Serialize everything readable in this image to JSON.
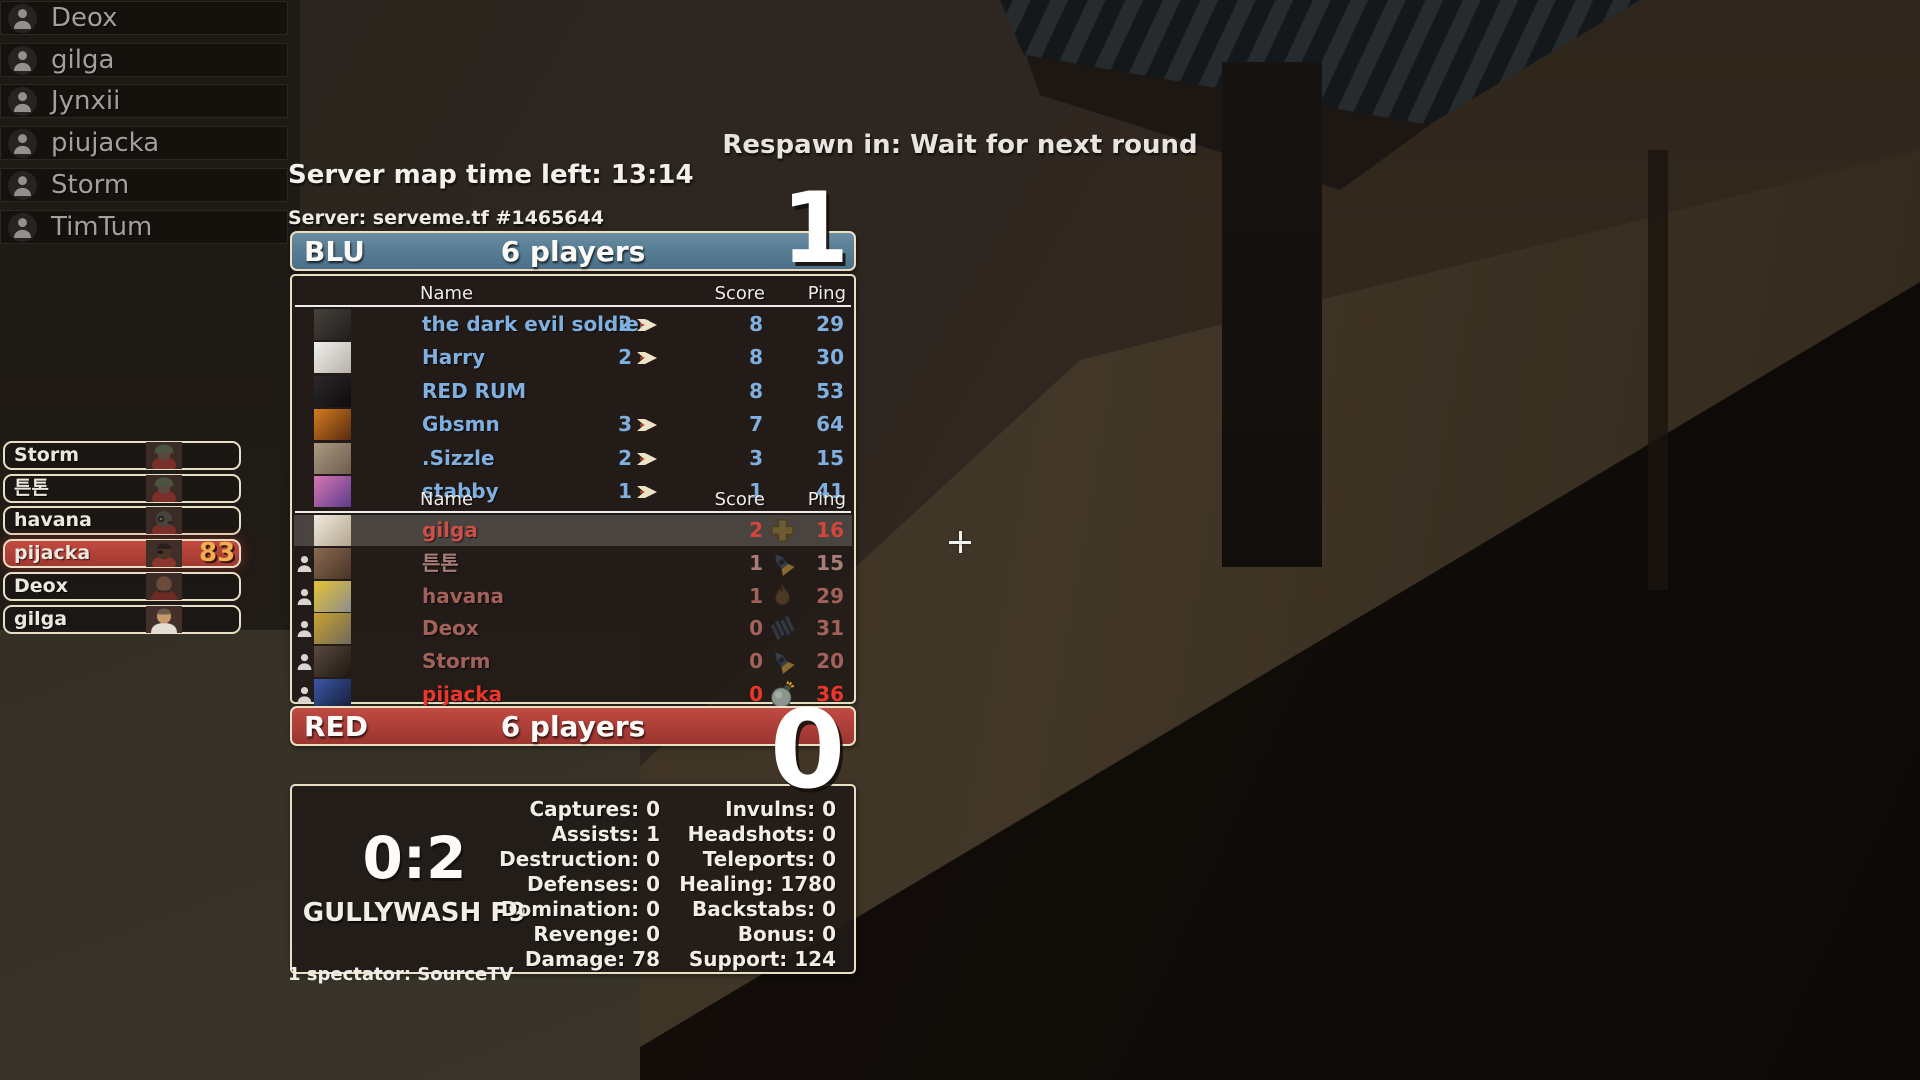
{
  "hud": {
    "respawn_text": "Respawn in: Wait for next round",
    "map_time_label": "Server map time left: 13:14",
    "server_label": "Server: serveme.tf #1465644",
    "spectator_label": "1 spectator: SourceTV"
  },
  "colors": {
    "blu_team": "#587e95",
    "red_team": "#b0403a",
    "panel_border": "#e9dfc6",
    "blu_text": "#7fb0df",
    "red_text_muted": "#a2625b",
    "red_text_bright": "#ec352b",
    "health_text": "#f2ae4e"
  },
  "roster": {
    "items": [
      {
        "name": "Deox"
      },
      {
        "name": "gilga"
      },
      {
        "name": "Jynxii"
      },
      {
        "name": "piujacka"
      },
      {
        "name": "Storm"
      },
      {
        "name": "TimTum"
      }
    ]
  },
  "target_ids": {
    "items": [
      {
        "name": "Storm",
        "class_icon": "portrait-soldier-icon",
        "highlight": false,
        "health": ""
      },
      {
        "name": "튼톤",
        "class_icon": "portrait-soldier-icon",
        "highlight": false,
        "health": ""
      },
      {
        "name": "havana",
        "class_icon": "portrait-pyro-icon",
        "highlight": false,
        "health": ""
      },
      {
        "name": "pijacka",
        "class_icon": "portrait-demoman-icon",
        "highlight": true,
        "health": "83"
      },
      {
        "name": "Deox",
        "class_icon": "portrait-heavy-icon",
        "highlight": false,
        "health": ""
      },
      {
        "name": "gilga",
        "class_icon": "portrait-medic-icon",
        "highlight": false,
        "health": ""
      }
    ]
  },
  "scoreboard": {
    "columns": {
      "name": "Name",
      "score": "Score",
      "ping": "Ping"
    },
    "blu": {
      "label": "BLU",
      "players_label": "6 players",
      "round_score": "1",
      "players": [
        {
          "name": "the dark evil soldier",
          "streak": "2",
          "score": "8",
          "ping": "29",
          "avatar": [
            "#46423c",
            "#201e1c"
          ]
        },
        {
          "name": "Harry",
          "streak": "2",
          "score": "8",
          "ping": "30",
          "avatar": [
            "#f0efeb",
            "#b6b1a9"
          ]
        },
        {
          "name": "RED RUM",
          "streak": "",
          "score": "8",
          "ping": "53",
          "avatar": [
            "#2c2829",
            "#0d0c0c"
          ]
        },
        {
          "name": "Gbsmn",
          "streak": "3",
          "score": "7",
          "ping": "64",
          "avatar": [
            "#d57d20",
            "#572a0f"
          ]
        },
        {
          "name": ".Sizzle",
          "streak": "2",
          "score": "3",
          "ping": "15",
          "avatar": [
            "#ab9983",
            "#6d5d4c"
          ]
        },
        {
          "name": "stabby",
          "streak": "1",
          "score": "1",
          "ping": "41",
          "avatar": [
            "#d678b0",
            "#5e3a8e"
          ]
        }
      ]
    },
    "red": {
      "label": "RED",
      "players_label": "6 players",
      "round_score": "0",
      "players": [
        {
          "name": "gilga",
          "score": "2",
          "ping": "16",
          "icon": "medic-cross-icon",
          "tone": "hl",
          "highlight": true,
          "silhouette": false,
          "avatar": [
            "#efe9df",
            "#b5a78e"
          ]
        },
        {
          "name": "튼톤",
          "score": "1",
          "ping": "15",
          "icon": "rocket-icon",
          "tone": "faded",
          "highlight": false,
          "silhouette": true,
          "avatar": [
            "#8a6a52",
            "#483326"
          ]
        },
        {
          "name": "havana",
          "score": "1",
          "ping": "29",
          "icon": "flame-icon",
          "tone": "muted",
          "highlight": false,
          "silhouette": true,
          "avatar": [
            "#e5c435",
            "#8d8d8d"
          ]
        },
        {
          "name": "Deox",
          "score": "0",
          "ping": "31",
          "icon": "ammo-belt-icon",
          "tone": "muted",
          "highlight": false,
          "silhouette": true,
          "avatar": [
            "#caa22f",
            "#6f6a59"
          ]
        },
        {
          "name": "Storm",
          "score": "0",
          "ping": "20",
          "icon": "rocket-icon",
          "tone": "muted",
          "highlight": false,
          "silhouette": true,
          "avatar": [
            "#584840",
            "#1f180f"
          ]
        },
        {
          "name": "pijacka",
          "score": "0",
          "ping": "36",
          "icon": "bomb-icon",
          "tone": "bright",
          "highlight": false,
          "silhouette": true,
          "avatar": [
            "#3c58a6",
            "#131b36"
          ]
        }
      ]
    }
  },
  "match_stats": {
    "score_line": "0:2",
    "map_name": "GULLYWASH F9",
    "left": [
      {
        "label": "Captures:",
        "value": "0"
      },
      {
        "label": "Assists:",
        "value": "1"
      },
      {
        "label": "Destruction:",
        "value": "0"
      },
      {
        "label": "Defenses:",
        "value": "0"
      },
      {
        "label": "Domination:",
        "value": "0"
      },
      {
        "label": "Revenge:",
        "value": "0"
      },
      {
        "label": "Damage:",
        "value": "78"
      }
    ],
    "right": [
      {
        "label": "Invulns:",
        "value": "0"
      },
      {
        "label": "Headshots:",
        "value": "0"
      },
      {
        "label": "Teleports:",
        "value": "0"
      },
      {
        "label": "Healing:",
        "value": "1780"
      },
      {
        "label": "Backstabs:",
        "value": "0"
      },
      {
        "label": "Bonus:",
        "value": "0"
      },
      {
        "label": "Support:",
        "value": "124"
      }
    ]
  }
}
